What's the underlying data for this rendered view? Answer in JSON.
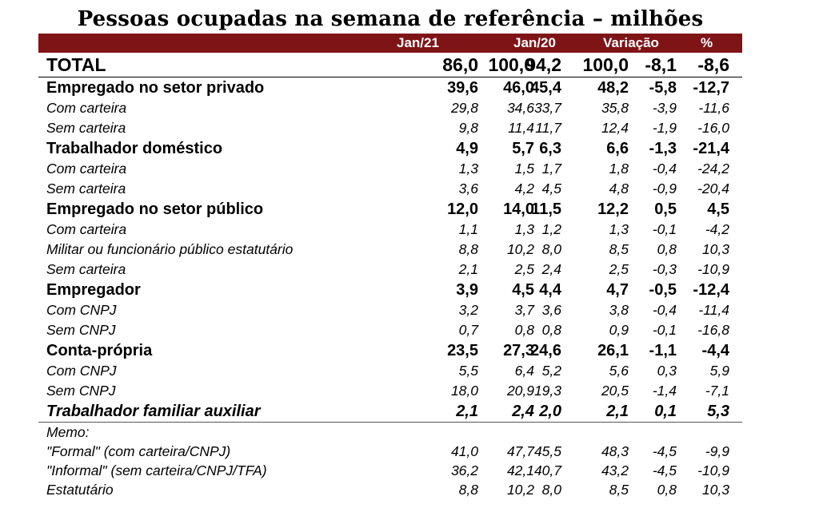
{
  "title": "Pessoas ocupadas na semana de referência – milhões",
  "header": {
    "jan21": "Jan/21",
    "jan20": "Jan/20",
    "variacao": "Variação",
    "pct": "%"
  },
  "total": {
    "label": "TOTAL",
    "values": [
      "86,0",
      "100,0",
      "94,2",
      "100,0",
      "-8,1",
      "-8,6"
    ]
  },
  "rows": [
    {
      "label": "Empregado no setor privado",
      "values": [
        "39,6",
        "46,0",
        "45,4",
        "48,2",
        "-5,8",
        "-12,7"
      ]
    },
    {
      "label": "Com carteira",
      "values": [
        "29,8",
        "34,6",
        "33,7",
        "35,8",
        "-3,9",
        "-11,6"
      ]
    },
    {
      "label": "Sem carteira",
      "values": [
        "9,8",
        "11,4",
        "11,7",
        "12,4",
        "-1,9",
        "-16,0"
      ]
    },
    {
      "label": "Trabalhador doméstico",
      "values": [
        "4,9",
        "5,7",
        "6,3",
        "6,6",
        "-1,3",
        "-21,4"
      ]
    },
    {
      "label": "Com carteira",
      "values": [
        "1,3",
        "1,5",
        "1,7",
        "1,8",
        "-0,4",
        "-24,2"
      ]
    },
    {
      "label": "Sem carteira",
      "values": [
        "3,6",
        "4,2",
        "4,5",
        "4,8",
        "-0,9",
        "-20,4"
      ]
    },
    {
      "label": "Empregado no setor público",
      "values": [
        "12,0",
        "14,0",
        "11,5",
        "12,2",
        "0,5",
        "4,5"
      ]
    },
    {
      "label": "Com carteira",
      "values": [
        "1,1",
        "1,3",
        "1,2",
        "1,3",
        "-0,1",
        "-4,2"
      ]
    },
    {
      "label": "Militar ou funcionário público estatutário",
      "values": [
        "8,8",
        "10,2",
        "8,0",
        "8,5",
        "0,8",
        "10,3"
      ]
    },
    {
      "label": "Sem carteira",
      "values": [
        "2,1",
        "2,5",
        "2,4",
        "2,5",
        "-0,3",
        "-10,9"
      ]
    },
    {
      "label": "Empregador",
      "values": [
        "3,9",
        "4,5",
        "4,4",
        "4,7",
        "-0,5",
        "-12,4"
      ]
    },
    {
      "label": "Com CNPJ",
      "values": [
        "3,2",
        "3,7",
        "3,6",
        "3,8",
        "-0,4",
        "-11,4"
      ]
    },
    {
      "label": "Sem CNPJ",
      "values": [
        "0,7",
        "0,8",
        "0,8",
        "0,9",
        "-0,1",
        "-16,8"
      ]
    },
    {
      "label": "Conta-própria",
      "values": [
        "23,5",
        "27,3",
        "24,6",
        "26,1",
        "-1,1",
        "-4,4"
      ]
    },
    {
      "label": "Com CNPJ",
      "values": [
        "5,5",
        "6,4",
        "5,2",
        "5,6",
        "0,3",
        "5,9"
      ]
    },
    {
      "label": "Sem CNPJ",
      "values": [
        "18,0",
        "20,9",
        "19,3",
        "20,5",
        "-1,4",
        "-7,1"
      ]
    },
    {
      "label": "Trabalhador familiar auxiliar",
      "values": [
        "2,1",
        "2,4",
        "2,0",
        "2,1",
        "0,1",
        "5,3"
      ]
    }
  ],
  "memo": {
    "heading": "Memo:",
    "rows": [
      {
        "label": "\"Formal\" (com carteira/CNPJ)",
        "values": [
          "41,0",
          "47,7",
          "45,5",
          "48,3",
          "-4,5",
          "-9,9"
        ]
      },
      {
        "label": "\"Informal\" (sem carteira/CNPJ/TFA)",
        "values": [
          "36,2",
          "42,1",
          "40,7",
          "43,2",
          "-4,5",
          "-10,9"
        ]
      },
      {
        "label": "Estatutário",
        "values": [
          "8,8",
          "10,2",
          "8,0",
          "8,5",
          "0,8",
          "10,3"
        ]
      }
    ]
  }
}
